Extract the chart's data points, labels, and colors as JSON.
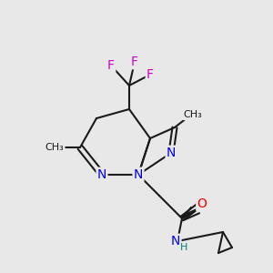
{
  "bg_color": "#e8e8e8",
  "bond_color": "#1a1a1a",
  "bond_width": 1.5,
  "atom_colors": {
    "N": "#0000ee",
    "O": "#ee0000",
    "F": "#cc00cc",
    "H": "#008080",
    "C": "#1a1a1a"
  },
  "font_size": 9,
  "font_size_small": 8
}
